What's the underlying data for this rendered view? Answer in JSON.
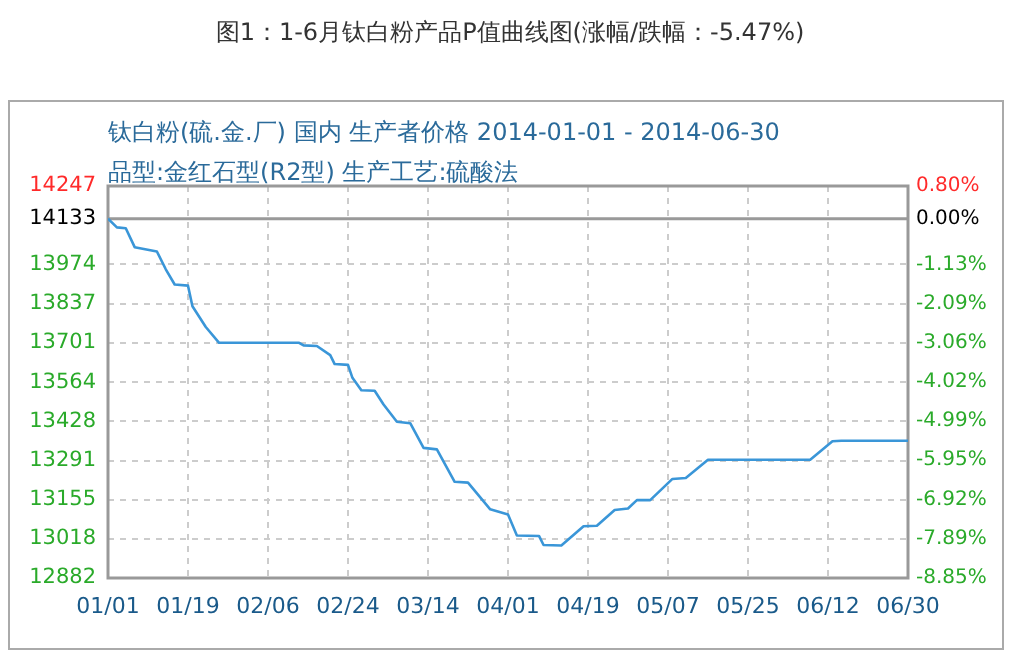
{
  "chart_data": {
    "type": "line",
    "title": "图1：1-6月钛白粉产品P值曲线图(涨幅/跌幅：-5.47%)",
    "subtitle": "钛白粉(硫.金.厂) 国内 生产者价格 2014-01-01 - 2014-06-30\n品型:金红石型(R2型) 生产工艺:硫酸法",
    "x": [
      "2014-01-01",
      "2014-01-03",
      "2014-01-05",
      "2014-01-07",
      "2014-01-12",
      "2014-01-14",
      "2014-01-16",
      "2014-01-19",
      "2014-01-20",
      "2014-01-23",
      "2014-01-26",
      "2014-02-13",
      "2014-02-14",
      "2014-02-17",
      "2014-02-20",
      "2014-02-21",
      "2014-02-24",
      "2014-02-25",
      "2014-02-27",
      "2014-03-02",
      "2014-03-04",
      "2014-03-07",
      "2014-03-10",
      "2014-03-13",
      "2014-03-16",
      "2014-03-20",
      "2014-03-23",
      "2014-03-28",
      "2014-04-01",
      "2014-04-03",
      "2014-04-08",
      "2014-04-09",
      "2014-04-13",
      "2014-04-18",
      "2014-04-21",
      "2014-04-25",
      "2014-04-28",
      "2014-04-30",
      "2014-05-03",
      "2014-05-08",
      "2014-05-11",
      "2014-05-16",
      "2014-06-08",
      "2014-06-13",
      "2014-06-15",
      "2014-06-30"
    ],
    "series": [
      {
        "color": "#3a96d8",
        "values": [
          14133,
          14103,
          14100,
          14034,
          14019,
          13957,
          13904,
          13900,
          13828,
          13756,
          13701,
          13701,
          13692,
          13690,
          13658,
          13627,
          13624,
          13579,
          13536,
          13534,
          13486,
          13426,
          13421,
          13335,
          13330,
          13217,
          13214,
          13121,
          13103,
          13030,
          13028,
          12997,
          12995,
          13062,
          13064,
          13119,
          13124,
          13153,
          13153,
          13227,
          13230,
          13294,
          13294,
          13358,
          13360,
          13360
        ]
      }
    ],
    "xlim": [
      "2014-01-01",
      "2014-06-30"
    ],
    "xticks": [
      {
        "value": "2014-01-01",
        "label": "01/01"
      },
      {
        "value": "2014-01-19",
        "label": "01/19"
      },
      {
        "value": "2014-02-06",
        "label": "02/06"
      },
      {
        "value": "2014-02-24",
        "label": "02/24"
      },
      {
        "value": "2014-03-14",
        "label": "03/14"
      },
      {
        "value": "2014-04-01",
        "label": "04/01"
      },
      {
        "value": "2014-04-19",
        "label": "04/19"
      },
      {
        "value": "2014-05-07",
        "label": "05/07"
      },
      {
        "value": "2014-05-25",
        "label": "05/25"
      },
      {
        "value": "2014-06-12",
        "label": "06/12"
      },
      {
        "value": "2014-06-30",
        "label": "06/30"
      }
    ],
    "ylim": [
      12882,
      14247
    ],
    "yticks": [
      12882,
      13018,
      13155,
      13291,
      13428,
      13564,
      13701,
      13837,
      13974,
      14133,
      14247
    ],
    "y2lim": [
      -8.85,
      0.8
    ],
    "y2ticks": [
      {
        "value": -8.85,
        "label": "-8.85%"
      },
      {
        "value": -7.89,
        "label": "-7.89%"
      },
      {
        "value": -6.92,
        "label": "-6.92%"
      },
      {
        "value": -5.95,
        "label": "-5.95%"
      },
      {
        "value": -4.99,
        "label": "-4.99%"
      },
      {
        "value": -4.02,
        "label": "-4.02%"
      },
      {
        "value": -3.06,
        "label": "-3.06%"
      },
      {
        "value": -2.09,
        "label": "-2.09%"
      },
      {
        "value": -1.13,
        "label": "-1.13%"
      },
      {
        "value": 0,
        "label": "0.00%"
      },
      {
        "value": 0.8,
        "label": "0.80%"
      }
    ],
    "ref_lines": [
      {
        "axis": "y",
        "value": 14133,
        "color": "#999999"
      }
    ],
    "grid": true,
    "legend": false,
    "marker": "none",
    "line_style": "solid"
  }
}
